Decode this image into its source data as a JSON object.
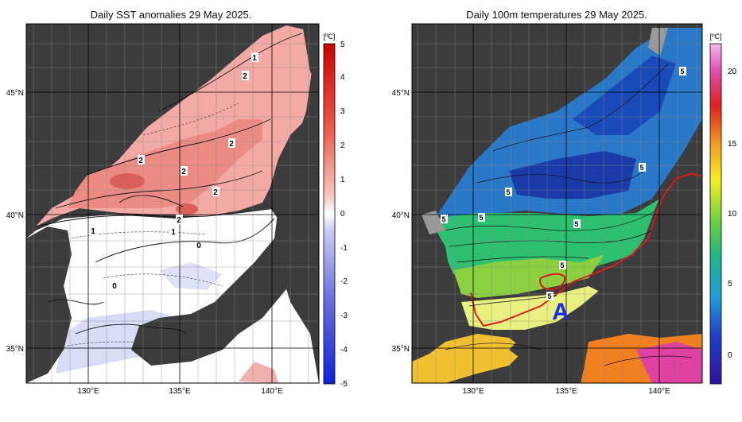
{
  "left_panel": {
    "title": "Daily SST anomalies 29 May 2025.",
    "unit": "[ºC]",
    "colorbar_ticks": [
      "5",
      "4",
      "3",
      "2",
      "1",
      "0",
      "-1",
      "-2",
      "-3",
      "-4",
      "-5"
    ],
    "lat_labels": [
      "45°N",
      "40°N",
      "35°N"
    ],
    "lon_labels": [
      "130°E",
      "135°E",
      "140°E"
    ],
    "contour_labels": [
      "1",
      "2",
      "2",
      "2",
      "2",
      "2",
      "2",
      "1",
      "1",
      "0",
      "0",
      "0"
    ],
    "colors": {
      "positive": "#e0504a",
      "negative": "#5a64dc",
      "zero": "#ffffff"
    }
  },
  "right_panel": {
    "title": "Daily 100m temperatures 29 May 2025.",
    "unit": "[ºC]",
    "colorbar_ticks": [
      "20",
      "15",
      "10",
      "5",
      "0"
    ],
    "lat_labels": [
      "45°N",
      "40°N",
      "35°N"
    ],
    "lon_labels": [
      "130°E",
      "135°E",
      "140°E"
    ],
    "contour_labels": [
      "5",
      "5",
      "5",
      "5",
      "5",
      "5",
      "5",
      "5"
    ],
    "marker": "A",
    "colors": {
      "front_line": "#e01818",
      "marker": "#1a2ae8"
    }
  }
}
